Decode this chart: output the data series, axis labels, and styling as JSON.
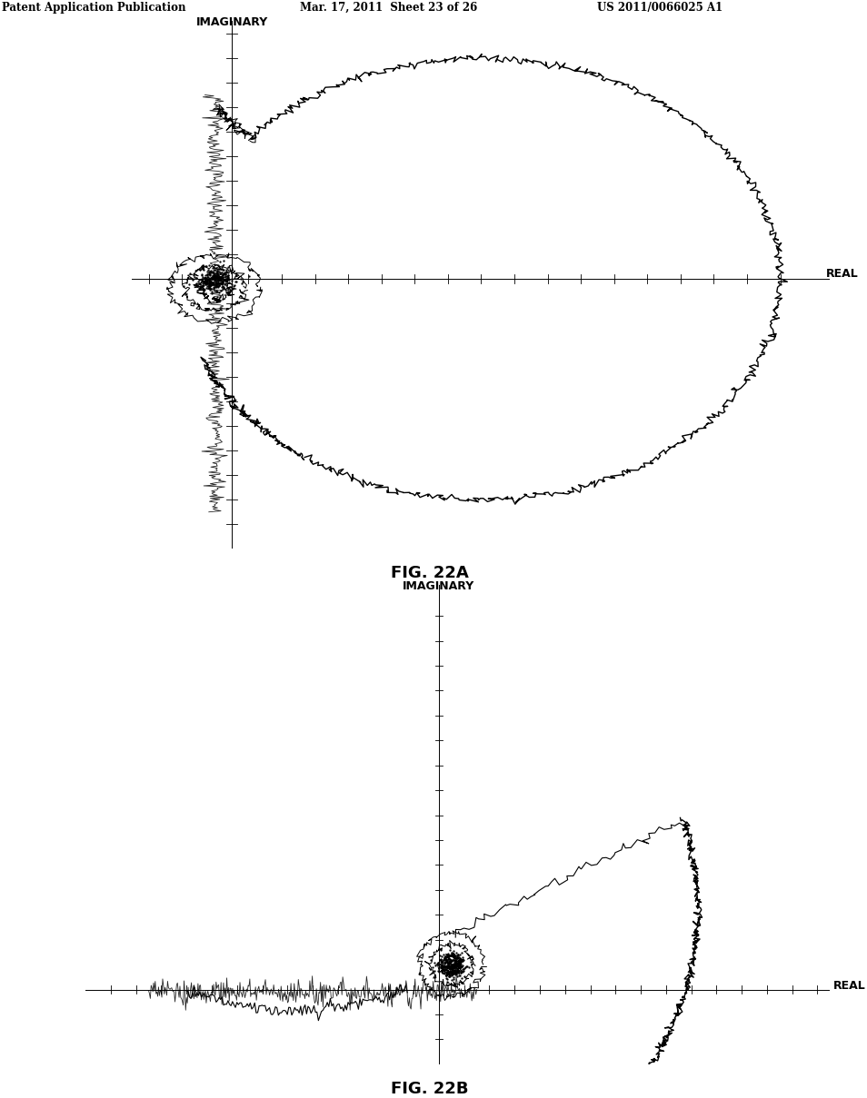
{
  "header_left": "Patent Application Publication",
  "header_mid": "Mar. 17, 2011  Sheet 23 of 26",
  "header_right": "US 2011/0066025 A1",
  "fig_label_a": "FIG. 22A",
  "fig_label_b": "FIG. 22B",
  "background_color": "#ffffff",
  "line_color": "#000000",
  "axis_color": "#000000",
  "label_imaginary": "IMAGINARY",
  "label_real": "REAL"
}
